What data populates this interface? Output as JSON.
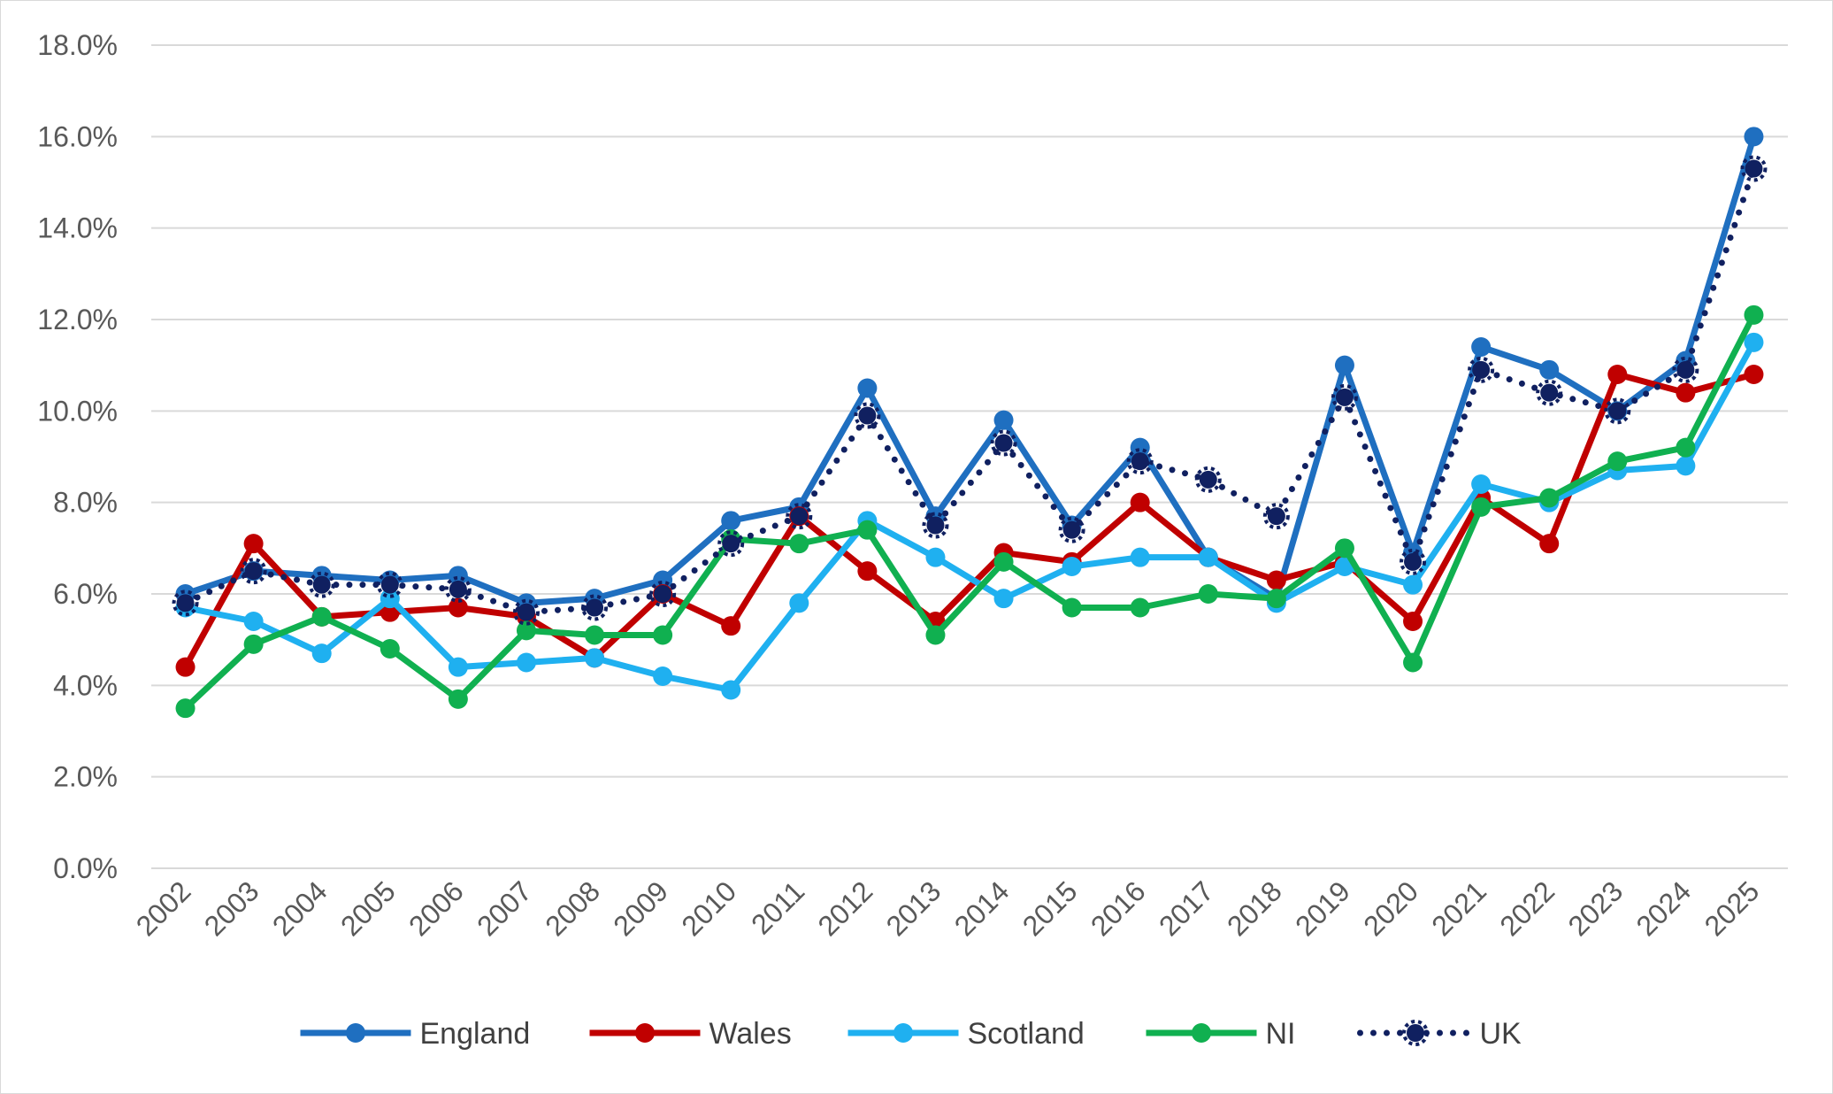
{
  "chart_data": {
    "type": "line",
    "title": "",
    "xlabel": "",
    "ylabel": "",
    "ylim": [
      0,
      18
    ],
    "y_tick_step": 2,
    "y_tick_format": "percent_1dp",
    "grid": "horizontal",
    "legend_position": "bottom",
    "categories": [
      "2002",
      "2003",
      "2004",
      "2005",
      "2006",
      "2007",
      "2008",
      "2009",
      "2010",
      "2011",
      "2012",
      "2013",
      "2014",
      "2015",
      "2016",
      "2017",
      "2018",
      "2019",
      "2020",
      "2021",
      "2022",
      "2023",
      "2024",
      "2025"
    ],
    "series": [
      {
        "name": "England",
        "color": "#1f6fc0",
        "style": "solid",
        "values": [
          6.0,
          6.5,
          6.4,
          6.3,
          6.4,
          5.8,
          5.9,
          6.3,
          7.6,
          7.9,
          10.5,
          7.7,
          9.8,
          7.5,
          9.2,
          6.8,
          5.9,
          11.0,
          6.9,
          11.4,
          10.9,
          10.0,
          11.1,
          16.0
        ]
      },
      {
        "name": "Wales",
        "color": "#c00000",
        "style": "solid",
        "values": [
          4.4,
          7.1,
          5.5,
          5.6,
          5.7,
          5.5,
          4.6,
          6.0,
          5.3,
          7.7,
          6.5,
          5.4,
          6.9,
          6.7,
          8.0,
          6.8,
          6.3,
          6.7,
          5.4,
          8.1,
          7.1,
          10.8,
          10.4,
          10.8
        ]
      },
      {
        "name": "Scotland",
        "color": "#1fb0f0",
        "style": "solid",
        "values": [
          5.7,
          5.4,
          4.7,
          5.9,
          4.4,
          4.5,
          4.6,
          4.2,
          3.9,
          5.8,
          7.6,
          6.8,
          5.9,
          6.6,
          6.8,
          6.8,
          5.8,
          6.6,
          6.2,
          8.4,
          8.0,
          8.7,
          8.8,
          11.5
        ]
      },
      {
        "name": "NI",
        "color": "#10b050",
        "style": "solid",
        "values": [
          3.5,
          4.9,
          5.5,
          4.8,
          3.7,
          5.2,
          5.1,
          5.1,
          7.2,
          7.1,
          7.4,
          5.1,
          6.7,
          5.7,
          5.7,
          6.0,
          5.9,
          7.0,
          4.5,
          7.9,
          8.1,
          8.9,
          9.2,
          12.1
        ]
      },
      {
        "name": "UK",
        "color": "#102060",
        "style": "dotted",
        "values": [
          5.8,
          6.5,
          6.2,
          6.2,
          6.1,
          5.6,
          5.7,
          6.0,
          7.1,
          7.7,
          9.9,
          7.5,
          9.3,
          7.4,
          8.9,
          8.5,
          7.7,
          10.3,
          6.7,
          10.9,
          10.4,
          10.0,
          10.9,
          15.3
        ]
      }
    ]
  }
}
